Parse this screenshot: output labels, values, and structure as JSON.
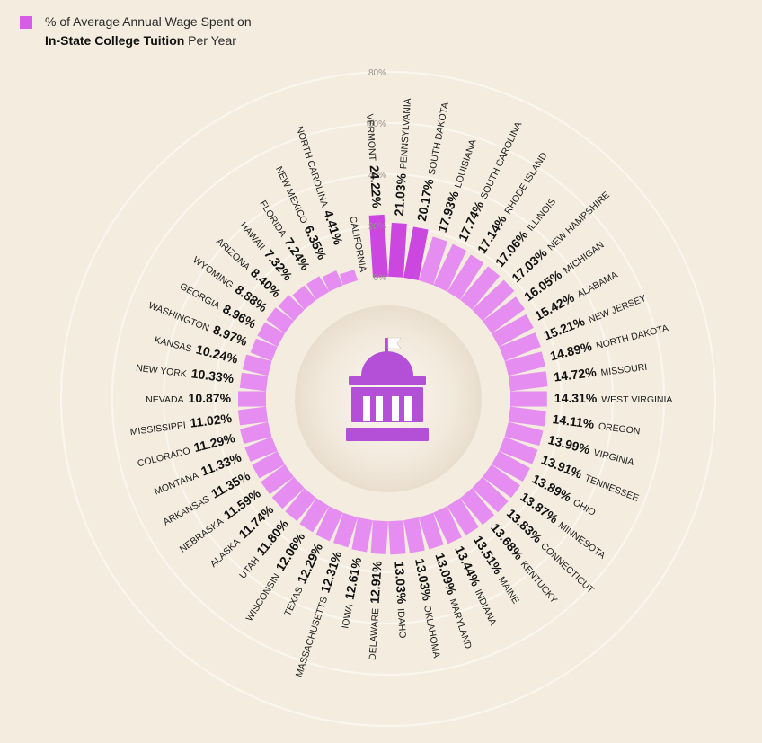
{
  "legend": {
    "line1": "% of Average Annual Wage Spent on",
    "line2_bold": "In-State College Tuition",
    "line2_rest": " Per Year",
    "swatch_color": "#d65ee6"
  },
  "chart_data": {
    "type": "radial-bar",
    "ylim": [
      0,
      80
    ],
    "tick_labels": [
      "0%",
      "20%",
      "40%",
      "60%",
      "80%"
    ],
    "tick_values": [
      0,
      20,
      40,
      60,
      80
    ],
    "center_icon": "capitol-building-icon",
    "colors": {
      "bar_light": "#e58df0",
      "bar_top": "#cc46e0",
      "icon": "#b44fd8",
      "rings": "#faf6ee"
    },
    "categories": [
      "Vermont",
      "Pennsylvania",
      "South Dakota",
      "Louisiana",
      "South Carolina",
      "Rhode Island",
      "Illinois",
      "New Hampshire",
      "Michigan",
      "Alabama",
      "New Jersey",
      "North Dakota",
      "Missouri",
      "West Virginia",
      "Oregon",
      "Virginia",
      "Tennessee",
      "Ohio",
      "Minnesota",
      "Connecticut",
      "Kentucky",
      "Maine",
      "Indiana",
      "Maryland",
      "Oklahoma",
      "Idaho",
      "Delaware",
      "Iowa",
      "Massachusetts",
      "Texas",
      "Wisconsin",
      "Utah",
      "Alaska",
      "Nebraska",
      "Arkansas",
      "Montana",
      "Colorado",
      "Mississippi",
      "Nevada",
      "New York",
      "Kansas",
      "Washington",
      "Georgia",
      "Wyoming",
      "Arizona",
      "Hawaii",
      "Florida",
      "New Mexico",
      "North Carolina",
      "California"
    ],
    "display_labels": [
      "VERMONT",
      "PENNSYLVANIA",
      "SOUTH DAKOTA",
      "LOUISIANA",
      "SOUTH CAROLINA",
      "RHODE ISLAND",
      "ILLINOIS",
      "NEW HAMPSHIRE",
      "MICHIGAN",
      "ALABAMA",
      "NEW JERSEY",
      "NORTH DAKOTA",
      "MISSOURI",
      "WEST VIRGINIA",
      "OREGON",
      "VIRGINIA",
      "TENNESSEE",
      "OHIO",
      "MINNESOTA",
      "CONNECTICUT",
      "KENTUCKY",
      "MAINE",
      "INDIANA",
      "MARYLAND",
      "OKLAHOMA",
      "IDAHO",
      "DELAWARE",
      "IOWA",
      "MASSACHUSETTS",
      "TEXAS",
      "WISCONSIN",
      "UTAH",
      "ALASKA",
      "NEBRASKA",
      "ARKANSAS",
      "MONTANA",
      "COLORADO",
      "MISSISSIPPI",
      "NEVADA",
      "NEW YORK",
      "KANSAS",
      "WASHINGTON",
      "GEORGIA",
      "WYOMING",
      "ARIZONA",
      "HAWAII",
      "FLORIDA",
      "NEW MEXICO",
      "NORTH CAROLINA",
      "CALIFORNIA"
    ],
    "values": [
      24.22,
      21.03,
      20.17,
      17.93,
      17.74,
      17.14,
      17.06,
      17.03,
      16.05,
      15.42,
      15.21,
      14.89,
      14.72,
      14.31,
      14.11,
      13.99,
      13.91,
      13.89,
      13.87,
      13.83,
      13.68,
      13.51,
      13.44,
      13.09,
      13.03,
      13.03,
      12.91,
      12.61,
      12.31,
      12.29,
      12.06,
      11.8,
      11.74,
      11.59,
      11.35,
      11.33,
      11.29,
      11.02,
      10.87,
      10.33,
      10.24,
      8.97,
      8.96,
      8.88,
      8.4,
      7.32,
      7.24,
      6.35,
      4.41,
      null
    ],
    "value_labels": [
      "24.22%",
      "21.03%",
      "20.17%",
      "17.93%",
      "17.74%",
      "17.14%",
      "17.06%",
      "17.03%",
      "16.05%",
      "15.42%",
      "15.21%",
      "14.89%",
      "14.72%",
      "14.31%",
      "14.11%",
      "13.99%",
      "13.91%",
      "13.89%",
      "13.87%",
      "13.83%",
      "13.68%",
      "13.51%",
      "13.44%",
      "13.09%",
      "13.03%",
      "13.03%",
      "12.91%",
      "12.61%",
      "12.31%",
      "12.29%",
      "12.06%",
      "11.80%",
      "11.74%",
      "11.59%",
      "11.35%",
      "11.33%",
      "11.29%",
      "11.02%",
      "10.87%",
      "10.33%",
      "10.24%",
      "8.97%",
      "8.96%",
      "8.88%",
      "8.40%",
      "7.32%",
      "7.24%",
      "6.35%",
      "4.41%",
      ""
    ]
  }
}
